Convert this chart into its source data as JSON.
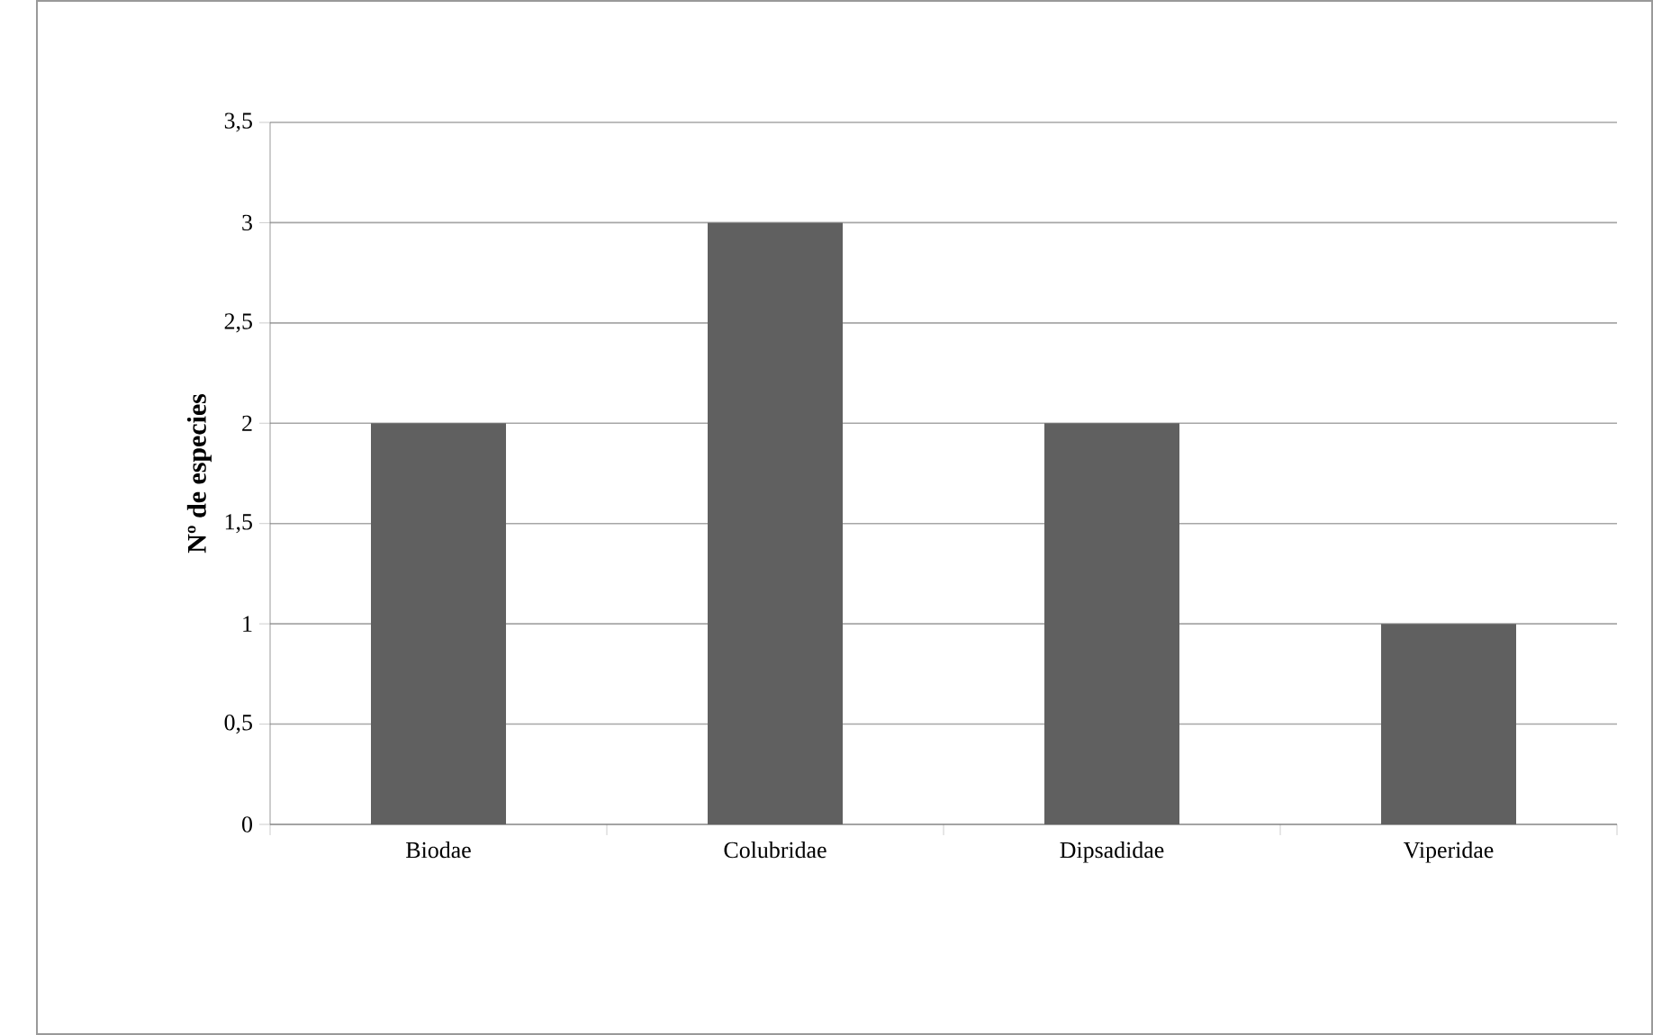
{
  "chart_data": {
    "type": "bar",
    "ylabel": "Nº de especies",
    "categories": [
      "Biodae",
      "Colubridae",
      "Dipsadidae",
      "Viperidae"
    ],
    "values": [
      2,
      3,
      2,
      1
    ],
    "color": "#606060",
    "ylim": [
      0,
      3.5
    ],
    "yticks": [
      0,
      {
        "value": 0.5,
        "label": "0,5"
      },
      1,
      {
        "value": 1.5,
        "label": "1,5"
      },
      2,
      {
        "value": 2.5,
        "label": "2,5"
      },
      3,
      {
        "value": 3.5,
        "label": "3,5"
      }
    ],
    "grid": "y"
  }
}
